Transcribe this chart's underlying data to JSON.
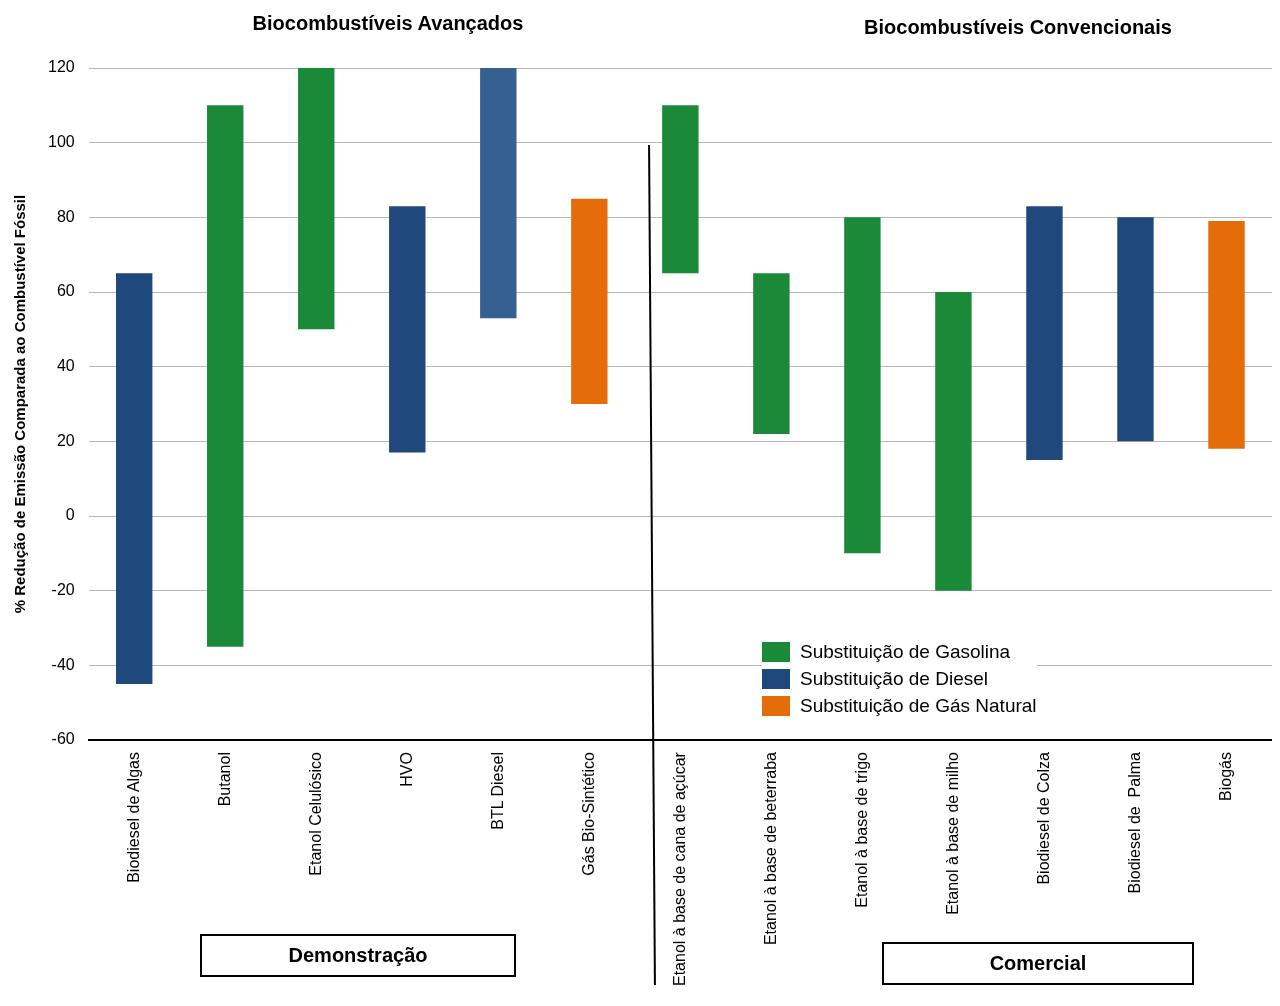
{
  "chart_data": {
    "type": "bar",
    "ylabel": "% Redução de Emissão Comparada ao Combustível Fóssil",
    "categories": [
      "Biodiesel de Algas",
      "Butanol",
      "Etanol Celulósico",
      "HVO",
      "BTL Diesel",
      "Gás Bio-Sintético",
      "Etanol à base de cana de açúcar",
      "Etanol à base de beterraba",
      "Etanol à base de trigo",
      "Etanol à base de milho",
      "Biodiesel de Colza",
      "Biodiesel de  Palma",
      "Biogás"
    ],
    "series": [
      {
        "name": "Substituição de Gasolina",
        "color": "#1a8a38",
        "values": [
          null,
          145,
          70,
          null,
          null,
          null,
          45,
          43,
          90,
          80,
          null,
          null,
          null
        ],
        "base": [
          null,
          -35,
          50,
          null,
          null,
          null,
          65,
          22,
          -10,
          -20,
          null,
          null,
          null
        ]
      },
      {
        "name": "Substituição de Diesel",
        "color": "#1f497d",
        "colors": [
          "#1f497d",
          null,
          null,
          "#1f497d",
          "#376092",
          null,
          null,
          null,
          null,
          null,
          "#1f497d",
          "#1f497d",
          null
        ],
        "values": [
          110,
          null,
          null,
          66,
          67,
          null,
          null,
          null,
          null,
          null,
          68,
          60,
          null
        ],
        "base": [
          -45,
          null,
          null,
          17,
          53,
          null,
          null,
          null,
          null,
          null,
          15,
          20,
          null
        ]
      },
      {
        "name": "Substituição de Gás Natural",
        "color": "#e46c0a",
        "values": [
          null,
          null,
          null,
          null,
          null,
          55,
          null,
          null,
          null,
          null,
          null,
          null,
          61
        ],
        "base": [
          null,
          null,
          null,
          null,
          null,
          30,
          null,
          null,
          null,
          null,
          null,
          null,
          18
        ]
      }
    ],
    "ylim": [
      -60,
      120
    ],
    "yticks": [
      -60,
      -40,
      -20,
      0,
      20,
      40,
      60,
      80,
      100,
      120
    ],
    "grid": "y",
    "legend": "bottom right",
    "annotations": [
      "Biocombustíveis Avançados",
      "Biocombustíveis Convencionais",
      "Demonstração",
      "Comercial"
    ]
  }
}
